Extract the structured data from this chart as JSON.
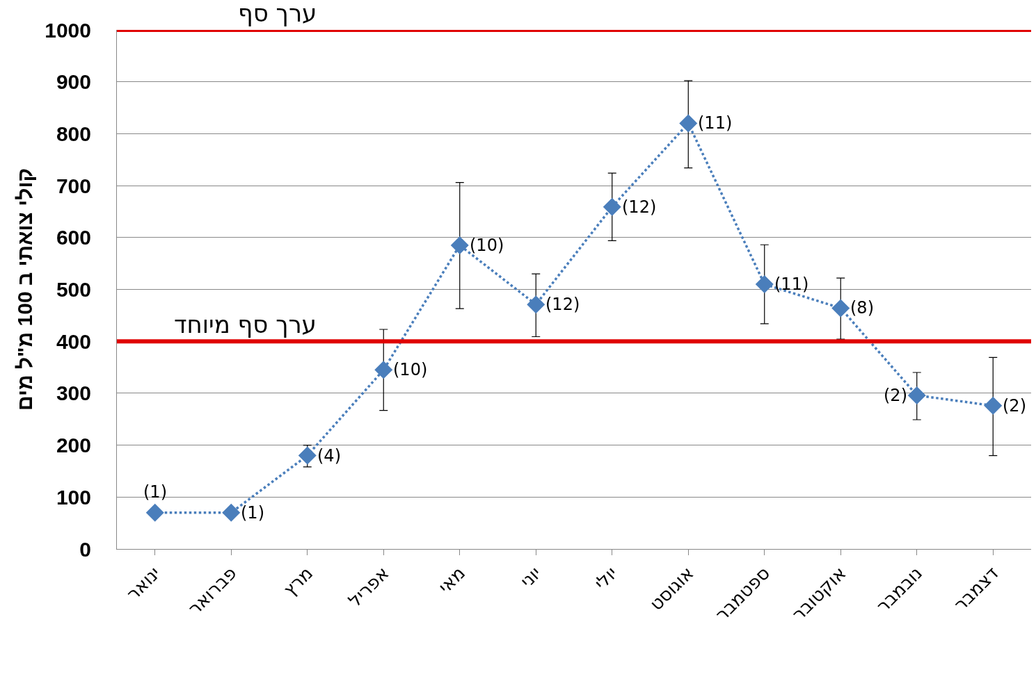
{
  "chart_data": {
    "type": "line",
    "ylabel": "קולי צואתי ב 100 מ\"ל מים",
    "categories": [
      "ינואר",
      "פברואר",
      "מרץ",
      "אפריל",
      "מאי",
      "יוני",
      "יולי",
      "אוגוסט",
      "ספטמבר",
      "אוקטובר",
      "נובמבר",
      "דצמבר"
    ],
    "series": [
      {
        "color": "#4a7ebb",
        "values": [
          70,
          70,
          180,
          345,
          585,
          471,
          659,
          820,
          510,
          464,
          296,
          276
        ],
        "errors": [
          null,
          null,
          [
            158,
            200
          ],
          [
            267,
            423
          ],
          [
            463,
            706
          ],
          [
            409,
            530
          ],
          [
            594,
            724
          ],
          [
            734,
            902
          ],
          [
            434,
            586
          ],
          [
            404,
            522
          ],
          [
            249,
            340
          ],
          [
            180,
            369
          ]
        ]
      }
    ],
    "annotations": [
      {
        "text": "(1)",
        "x": "ינואר",
        "y": 70
      },
      {
        "text": "(1)",
        "x": "פברואר",
        "y": 70
      },
      {
        "text": "(4)",
        "x": "מרץ",
        "y": 180
      },
      {
        "text": "(10)",
        "x": "אפריל",
        "y": 345
      },
      {
        "text": "(10)",
        "x": "מאי",
        "y": 585
      },
      {
        "text": "(12)",
        "x": "יוני",
        "y": 471
      },
      {
        "text": "(12)",
        "x": "יולי",
        "y": 659
      },
      {
        "text": "(11)",
        "x": "אוגוסט",
        "y": 820
      },
      {
        "text": "(11)",
        "x": "ספטמבר",
        "y": 510
      },
      {
        "text": "(8)",
        "x": "אוקטובר",
        "y": 464
      },
      {
        "text": "(2)",
        "x": "נובמבר",
        "y": 296
      },
      {
        "text": "(2)",
        "x": "דצמבר",
        "y": 276
      }
    ],
    "ylim": [
      0,
      1000
    ],
    "yticks": [
      0,
      100,
      200,
      300,
      400,
      500,
      600,
      700,
      800,
      900,
      1000
    ],
    "ref_lines": [
      {
        "axis": "y",
        "value": 1000,
        "label": "ערך סף",
        "color": "#e00000"
      },
      {
        "axis": "y",
        "value": 400,
        "label": "ערך סף מיוחד",
        "color": "#e00000"
      }
    ],
    "grid": "y",
    "legend": false,
    "marker": "diamond",
    "line_style": "dotted"
  }
}
